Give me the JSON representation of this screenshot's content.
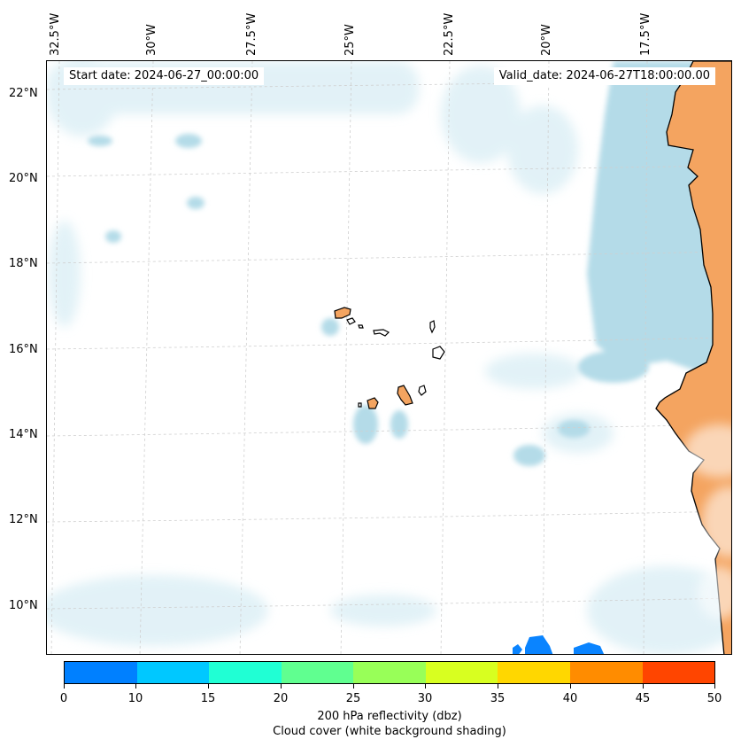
{
  "map": {
    "lon_labels": [
      "32.5°W",
      "30°W",
      "27.5°W",
      "25°W",
      "22.5°W",
      "20°W",
      "17.5°W"
    ],
    "lat_labels": [
      "22°N",
      "20°N",
      "18°N",
      "16°N",
      "14°N",
      "12°N",
      "10°N"
    ],
    "start_date": "Start date: 2024-06-27_00:00:00",
    "valid_date": "Valid_date: 2024-06-27T18:00:00.00",
    "colors": {
      "ocean": "#ffffff",
      "land": "#f4a460",
      "cloud": "#add8e6",
      "coastline": "#000000",
      "grid": "#c8c8c8"
    }
  },
  "colorbar": {
    "ticks": [
      "0",
      "10",
      "15",
      "20",
      "25",
      "30",
      "35",
      "40",
      "45",
      "50"
    ],
    "colors": [
      "#0080ff",
      "#00c8ff",
      "#20ffd4",
      "#60ff90",
      "#98ff58",
      "#d8ff20",
      "#ffd700",
      "#ff8c00",
      "#ff4500"
    ],
    "label_line1": "200 hPa reflectivity (dbz)",
    "label_line2": "Cloud cover (white background shading)"
  }
}
